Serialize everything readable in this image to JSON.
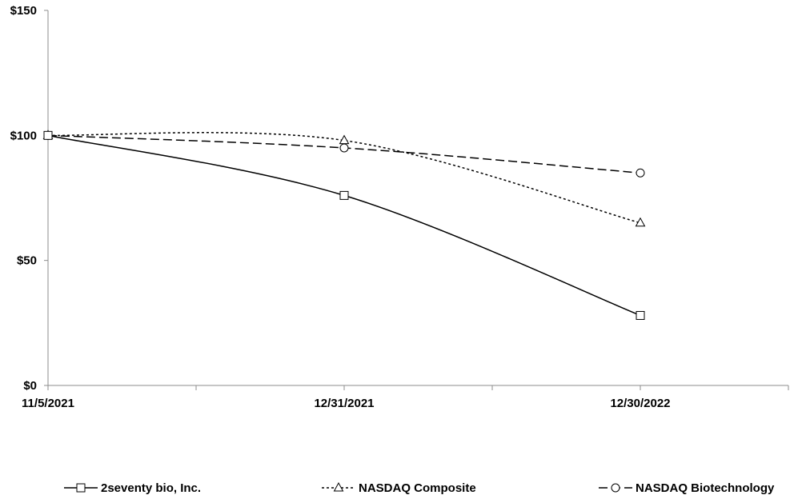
{
  "chart_data": {
    "type": "line",
    "title": "",
    "xlabel": "",
    "ylabel": "",
    "categories": [
      "11/5/2021",
      "12/31/2021",
      "12/30/2022"
    ],
    "y_ticks": [
      "$0",
      "$50",
      "$100",
      "$150"
    ],
    "ylim": [
      0,
      150
    ],
    "grid": false,
    "legend_position": "bottom",
    "series": [
      {
        "name": "2seventy bio, Inc.",
        "values": [
          100,
          76,
          28
        ],
        "marker": "square",
        "dash": "solid",
        "color": "#000000"
      },
      {
        "name": "NASDAQ Composite",
        "values": [
          100,
          98,
          65
        ],
        "marker": "triangle",
        "dash": "short-dash",
        "color": "#000000"
      },
      {
        "name": "NASDAQ Biotechnology",
        "values": [
          100,
          95,
          85
        ],
        "marker": "circle",
        "dash": "long-dash",
        "color": "#000000"
      }
    ]
  }
}
